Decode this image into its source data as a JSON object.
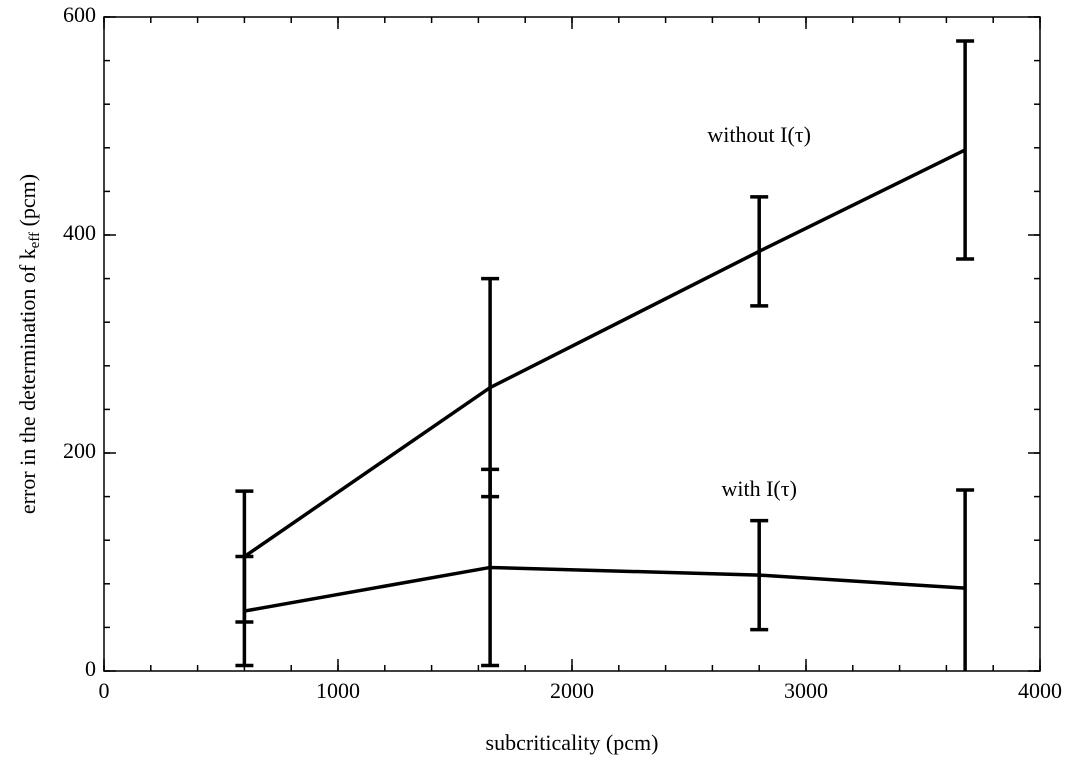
{
  "chart_data": {
    "type": "line",
    "xlabel": "subcriticality (pcm)",
    "ylabel": {
      "text": "error in the determination of k",
      "subscript": "eff",
      "suffix": " (pcm)"
    },
    "x": [
      600,
      1650,
      2800,
      3680
    ],
    "series": [
      {
        "color": "#000000",
        "values": [
          105,
          260,
          385,
          478
        ],
        "errors": [
          60,
          100,
          50,
          100
        ]
      },
      {
        "color": "#000000",
        "values": [
          55,
          95,
          88,
          76
        ],
        "errors": [
          50,
          90,
          50,
          90
        ]
      }
    ],
    "annotations": [
      {
        "text": "without I(τ)",
        "x": 2800,
        "y": 490
      },
      {
        "text": "with I(τ)",
        "x": 2800,
        "y": 165
      }
    ],
    "xlim": [
      0,
      4000
    ],
    "xticks": [
      0,
      1000,
      2000,
      3000,
      4000
    ],
    "xminor_step": 200,
    "ylim": [
      0,
      600
    ],
    "yticks": [
      0,
      200,
      400,
      600
    ],
    "yminor_step": 40
  }
}
